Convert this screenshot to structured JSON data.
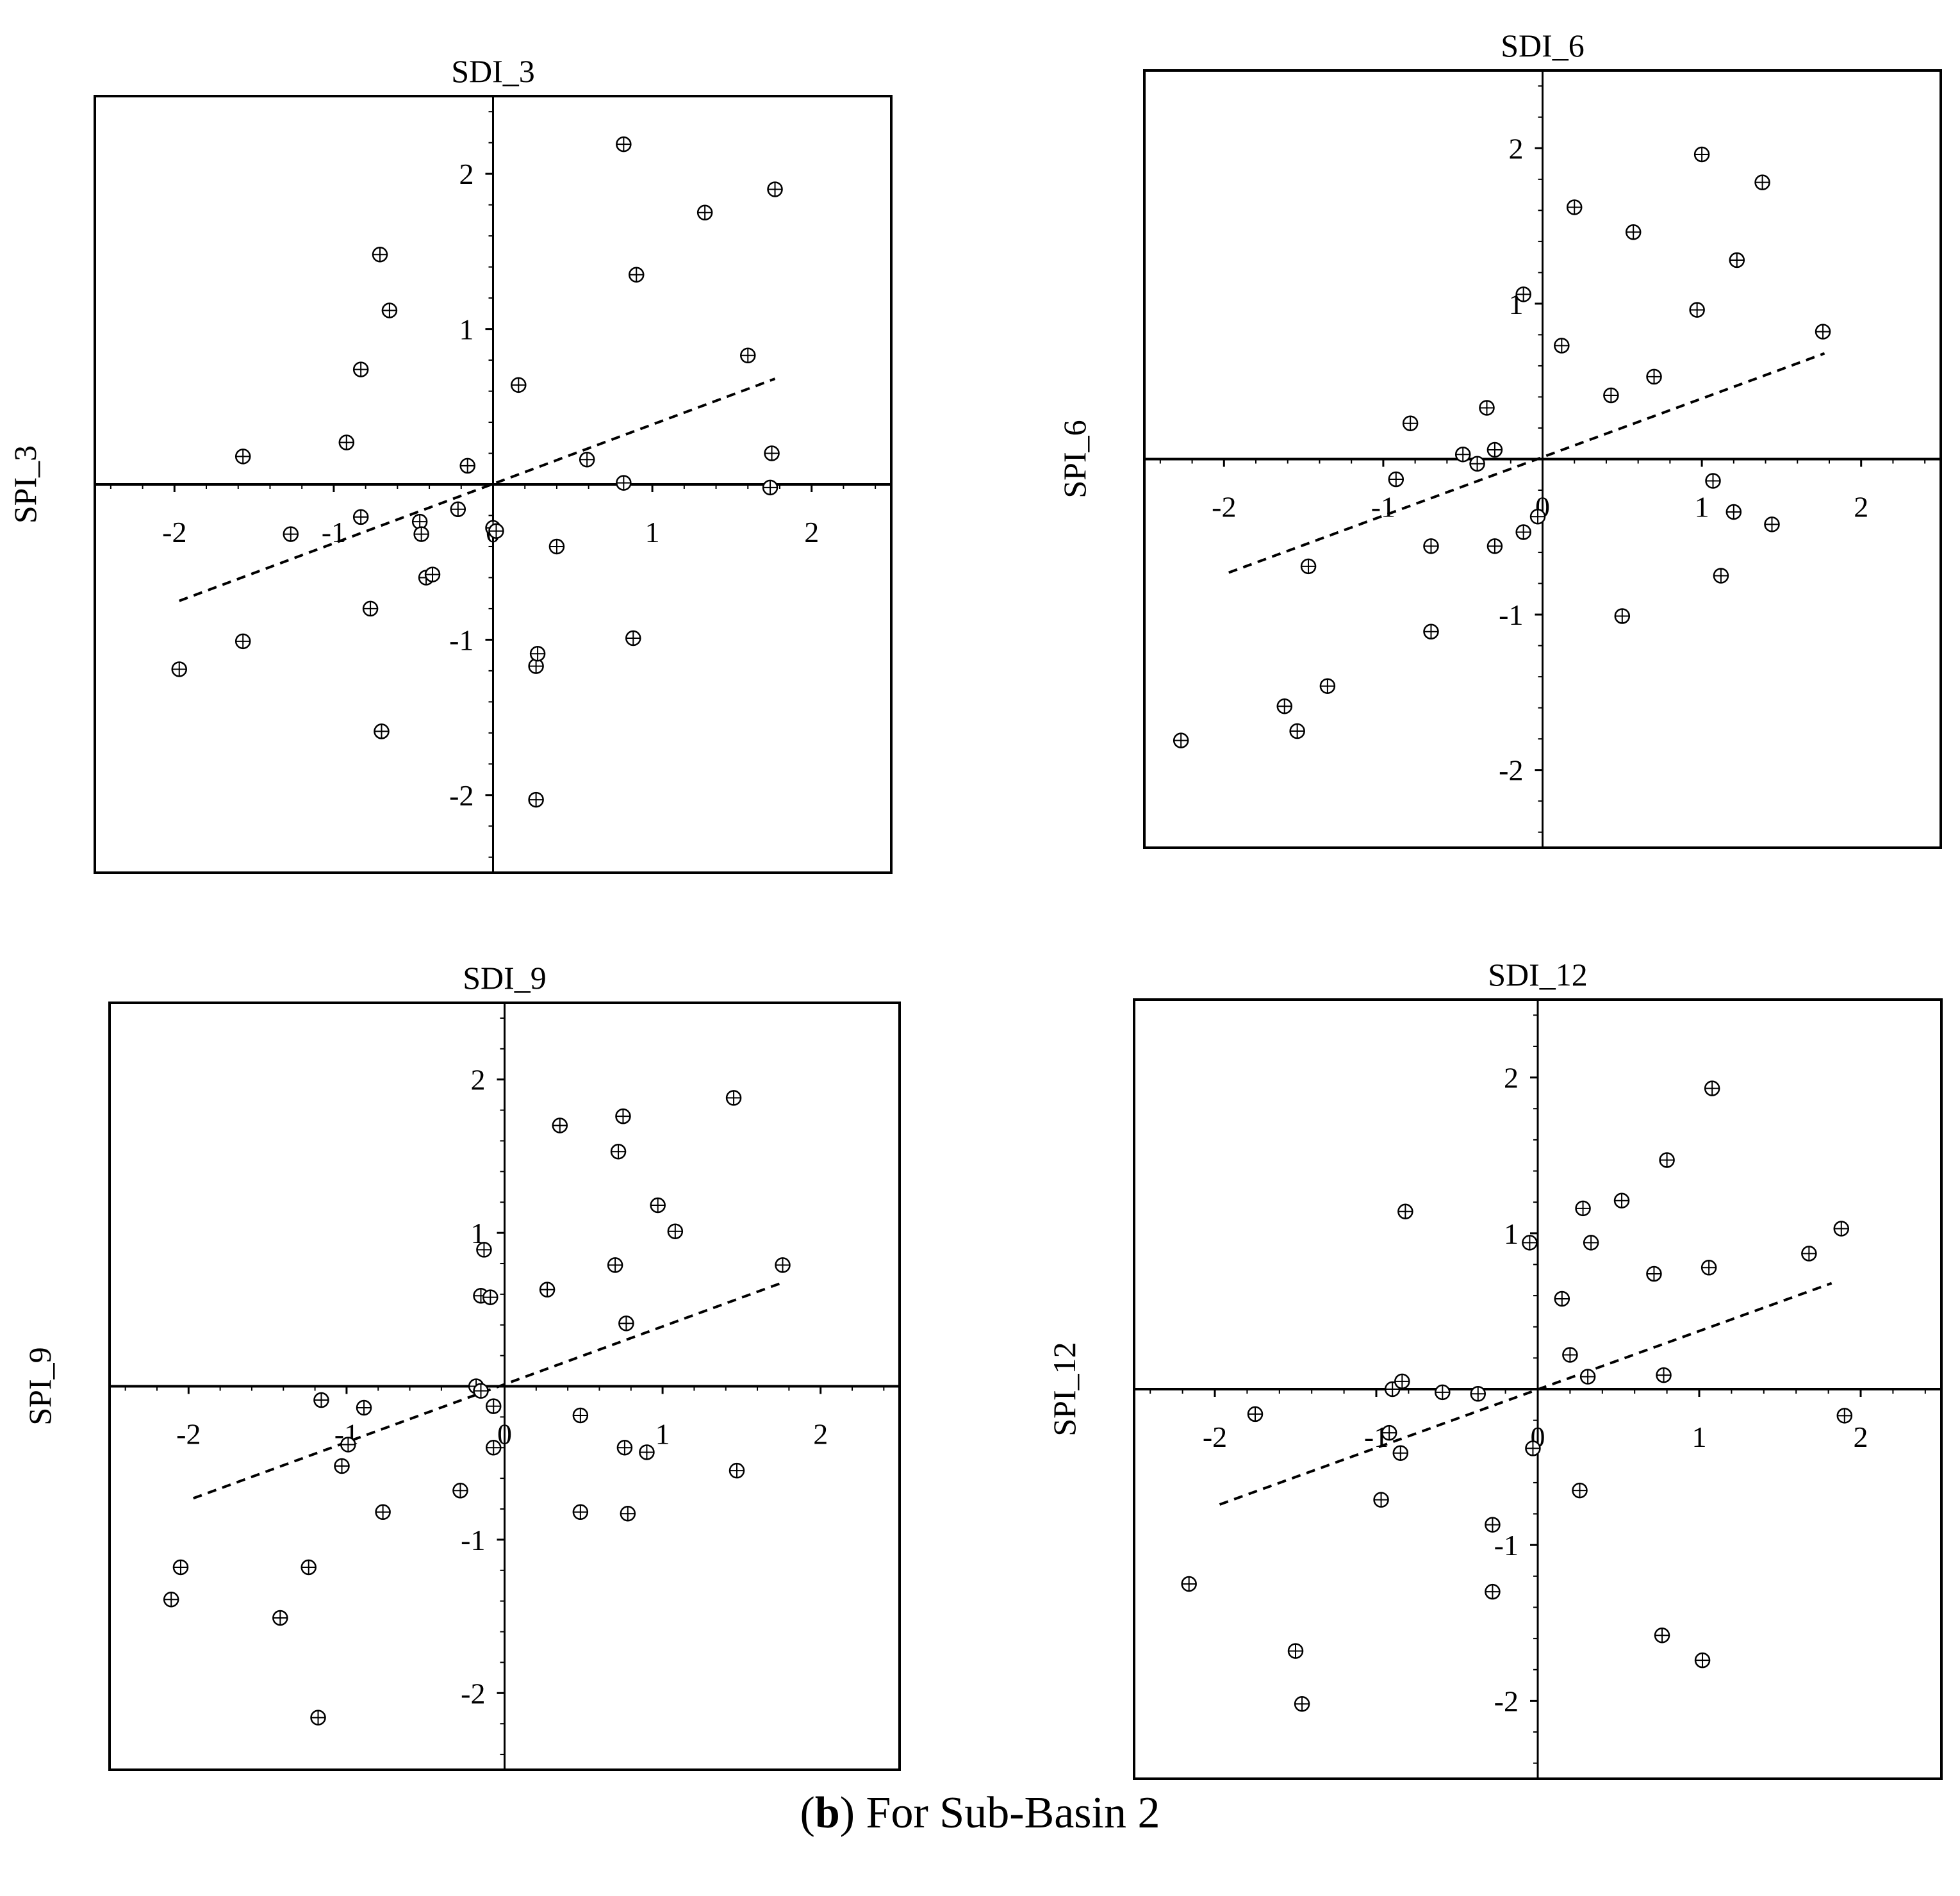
{
  "caption": {
    "prefix": "(",
    "bold": "b",
    "suffix": ") For Sub-Basin 2"
  },
  "chart_data": [
    {
      "type": "scatter",
      "title": "SDI_3",
      "xlabel": "",
      "ylabel": "SPI_3",
      "xlim": [
        -2.5,
        2.5
      ],
      "ylim": [
        -2.5,
        2.5
      ],
      "xticks": [
        -2,
        -1,
        0,
        1,
        2
      ],
      "yticks": [
        -2,
        -1,
        1,
        2
      ],
      "grid": false,
      "points": [
        [
          -1.97,
          -1.19
        ],
        [
          -1.57,
          -1.01
        ],
        [
          -1.57,
          0.18
        ],
        [
          -1.27,
          -0.32
        ],
        [
          -0.92,
          0.27
        ],
        [
          -0.83,
          -0.21
        ],
        [
          -0.83,
          0.74
        ],
        [
          -0.77,
          -0.8
        ],
        [
          -0.71,
          1.48
        ],
        [
          -0.7,
          -1.59
        ],
        [
          -0.65,
          1.12
        ],
        [
          -0.46,
          -0.24
        ],
        [
          -0.45,
          -0.32
        ],
        [
          -0.42,
          -0.6
        ],
        [
          -0.38,
          -0.58
        ],
        [
          -0.22,
          -0.16
        ],
        [
          -0.16,
          0.12
        ],
        [
          0.0,
          -0.28
        ],
        [
          0.02,
          -0.3
        ],
        [
          0.16,
          0.64
        ],
        [
          0.27,
          -1.17
        ],
        [
          0.28,
          -1.09
        ],
        [
          0.27,
          -2.03
        ],
        [
          0.4,
          -0.4
        ],
        [
          0.59,
          0.16
        ],
        [
          0.82,
          2.19
        ],
        [
          0.82,
          0.01
        ],
        [
          0.88,
          -0.99
        ],
        [
          0.9,
          1.35
        ],
        [
          1.33,
          1.75
        ],
        [
          1.6,
          0.83
        ],
        [
          1.75,
          0.2
        ],
        [
          1.74,
          -0.02
        ],
        [
          1.77,
          1.9
        ]
      ],
      "trend": {
        "x": [
          -1.97,
          1.77
        ],
        "y": [
          -0.75,
          0.68
        ]
      }
    },
    {
      "type": "scatter",
      "title": "SDI_6",
      "xlabel": "",
      "ylabel": "SPI_6",
      "xlim": [
        -2.5,
        2.5
      ],
      "ylim": [
        -2.5,
        2.5
      ],
      "xticks": [
        -2,
        -1,
        0,
        1,
        2
      ],
      "yticks": [
        -2,
        -1,
        1,
        2
      ],
      "grid": false,
      "points": [
        [
          -2.27,
          -1.81
        ],
        [
          -1.62,
          -1.59
        ],
        [
          -1.54,
          -1.75
        ],
        [
          -1.47,
          -0.69
        ],
        [
          -1.35,
          -1.46
        ],
        [
          -0.92,
          -0.13
        ],
        [
          -0.83,
          0.23
        ],
        [
          -0.7,
          -0.56
        ],
        [
          -0.7,
          -1.11
        ],
        [
          -0.5,
          0.03
        ],
        [
          -0.41,
          -0.03
        ],
        [
          -0.35,
          0.33
        ],
        [
          -0.3,
          0.06
        ],
        [
          -0.3,
          -0.56
        ],
        [
          -0.12,
          -0.47
        ],
        [
          -0.12,
          1.06
        ],
        [
          -0.03,
          -0.37
        ],
        [
          0.12,
          0.73
        ],
        [
          0.2,
          1.62
        ],
        [
          0.43,
          0.41
        ],
        [
          0.5,
          -1.01
        ],
        [
          0.57,
          1.46
        ],
        [
          0.7,
          0.53
        ],
        [
          0.97,
          0.96
        ],
        [
          1.0,
          1.96
        ],
        [
          1.07,
          -0.14
        ],
        [
          1.12,
          -0.75
        ],
        [
          1.2,
          -0.34
        ],
        [
          1.22,
          1.28
        ],
        [
          1.38,
          1.78
        ],
        [
          1.44,
          -0.42
        ],
        [
          1.76,
          0.82
        ]
      ],
      "trend": {
        "x": [
          -1.97,
          1.77
        ],
        "y": [
          -0.73,
          0.68
        ]
      }
    },
    {
      "type": "scatter",
      "title": "SDI_9",
      "xlabel": "",
      "ylabel": "SPI_9",
      "xlim": [
        -2.5,
        2.5
      ],
      "ylim": [
        -2.5,
        2.5
      ],
      "xticks": [
        -2,
        -1,
        0,
        1,
        2
      ],
      "yticks": [
        -2,
        -1,
        1,
        2
      ],
      "grid": false,
      "points": [
        [
          -2.11,
          -1.39
        ],
        [
          -2.05,
          -1.18
        ],
        [
          -1.42,
          -1.51
        ],
        [
          -1.24,
          -1.18
        ],
        [
          -1.18,
          -2.16
        ],
        [
          -1.16,
          -0.09
        ],
        [
          -1.03,
          -0.52
        ],
        [
          -0.99,
          -0.38
        ],
        [
          -0.89,
          -0.14
        ],
        [
          -0.77,
          -0.82
        ],
        [
          -0.28,
          -0.68
        ],
        [
          -0.18,
          0.0
        ],
        [
          -0.15,
          -0.03
        ],
        [
          -0.15,
          0.59
        ],
        [
          -0.13,
          0.89
        ],
        [
          -0.09,
          0.58
        ],
        [
          -0.07,
          -0.4
        ],
        [
          -0.07,
          -0.13
        ],
        [
          0.27,
          0.63
        ],
        [
          0.35,
          1.7
        ],
        [
          0.48,
          -0.19
        ],
        [
          0.48,
          -0.82
        ],
        [
          0.7,
          0.79
        ],
        [
          0.72,
          1.53
        ],
        [
          0.75,
          1.76
        ],
        [
          0.76,
          -0.4
        ],
        [
          0.77,
          0.41
        ],
        [
          0.78,
          -0.83
        ],
        [
          0.9,
          -0.43
        ],
        [
          0.97,
          1.18
        ],
        [
          1.08,
          1.01
        ],
        [
          1.45,
          1.88
        ],
        [
          1.47,
          -0.55
        ],
        [
          1.76,
          0.79
        ]
      ],
      "trend": {
        "x": [
          -1.97,
          1.77
        ],
        "y": [
          -0.73,
          0.68
        ]
      }
    },
    {
      "type": "scatter",
      "title": "SDI_12",
      "xlabel": "",
      "ylabel": "SPI_12",
      "xlim": [
        -2.5,
        2.5
      ],
      "ylim": [
        -2.5,
        2.5
      ],
      "xticks": [
        -2,
        -1,
        0,
        1,
        2
      ],
      "yticks": [
        -2,
        -1,
        1,
        2
      ],
      "grid": false,
      "points": [
        [
          -2.16,
          -1.25
        ],
        [
          -1.75,
          -0.16
        ],
        [
          -1.5,
          -1.68
        ],
        [
          -1.46,
          -2.02
        ],
        [
          -0.97,
          -0.71
        ],
        [
          -0.92,
          -0.28
        ],
        [
          -0.9,
          0.0
        ],
        [
          -0.85,
          -0.41
        ],
        [
          -0.84,
          0.05
        ],
        [
          -0.82,
          1.14
        ],
        [
          -0.59,
          -0.02
        ],
        [
          -0.37,
          -0.03
        ],
        [
          -0.28,
          -0.87
        ],
        [
          -0.28,
          -1.3
        ],
        [
          -0.05,
          0.94
        ],
        [
          -0.03,
          -0.38
        ],
        [
          0.15,
          0.58
        ],
        [
          0.2,
          0.22
        ],
        [
          0.26,
          -0.65
        ],
        [
          0.28,
          1.16
        ],
        [
          0.31,
          0.08
        ],
        [
          0.33,
          0.94
        ],
        [
          0.52,
          1.21
        ],
        [
          0.72,
          0.74
        ],
        [
          0.78,
          0.09
        ],
        [
          0.77,
          -1.58
        ],
        [
          0.8,
          1.47
        ],
        [
          1.02,
          -1.74
        ],
        [
          1.06,
          0.78
        ],
        [
          1.08,
          1.93
        ],
        [
          1.68,
          0.87
        ],
        [
          1.88,
          1.03
        ],
        [
          1.9,
          -0.17
        ]
      ],
      "trend": {
        "x": [
          -1.97,
          1.82
        ],
        "y": [
          -0.74,
          0.68
        ]
      }
    }
  ]
}
